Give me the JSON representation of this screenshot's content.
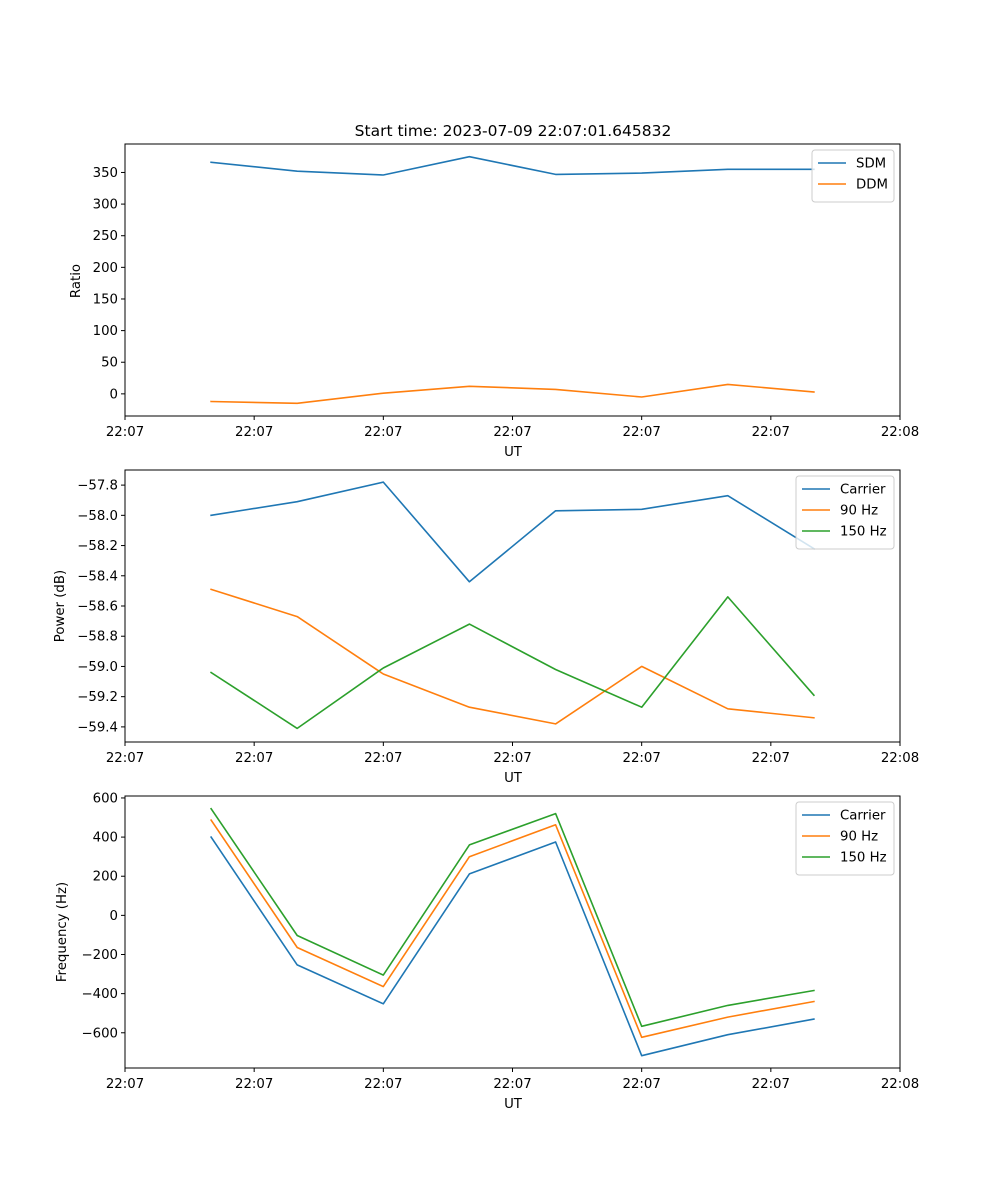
{
  "colors": {
    "c0": "#1f77b4",
    "c1": "#ff7f0e",
    "c2": "#2ca02c"
  },
  "chart_data": [
    {
      "type": "line",
      "title": "Start time: 2023-07-09 22:07:01.645832",
      "xlabel": "UT",
      "ylabel": "Ratio",
      "x": [
        1,
        2,
        3,
        4,
        5,
        6,
        7,
        8
      ],
      "xlim": [
        0,
        9
      ],
      "xticks": [
        0,
        1.5,
        3,
        4.5,
        6,
        7.5,
        9
      ],
      "xtick_labels": [
        "22:07",
        "22:07",
        "22:07",
        "22:07",
        "22:07",
        "22:07",
        "22:08"
      ],
      "ylim": [
        -35,
        395
      ],
      "yticks": [
        0,
        50,
        100,
        150,
        200,
        250,
        300,
        350
      ],
      "ytick_labels": [
        "0",
        "50",
        "100",
        "150",
        "200",
        "250",
        "300",
        "350"
      ],
      "legend_position": "top-right",
      "series": [
        {
          "name": "SDM",
          "color": "#1f77b4",
          "values": [
            366,
            352,
            346,
            375,
            347,
            349,
            355,
            355
          ]
        },
        {
          "name": "DDM",
          "color": "#ff7f0e",
          "values": [
            -12,
            -15,
            1,
            12,
            7,
            -5,
            15,
            3
          ]
        }
      ]
    },
    {
      "type": "line",
      "title": "",
      "xlabel": "UT",
      "ylabel": "Power (dB)",
      "x": [
        1,
        2,
        3,
        4,
        5,
        6,
        7,
        8
      ],
      "xlim": [
        0,
        9
      ],
      "xticks": [
        0,
        1.5,
        3,
        4.5,
        6,
        7.5,
        9
      ],
      "xtick_labels": [
        "22:07",
        "22:07",
        "22:07",
        "22:07",
        "22:07",
        "22:07",
        "22:08"
      ],
      "ylim": [
        -59.5,
        -57.7
      ],
      "yticks": [
        -59.4,
        -59.2,
        -59.0,
        -58.8,
        -58.6,
        -58.4,
        -58.2,
        -58.0,
        -57.8
      ],
      "ytick_labels": [
        "−59.4",
        "−59.2",
        "−59.0",
        "−58.8",
        "−58.6",
        "−58.4",
        "−58.2",
        "−58.0",
        "−57.8"
      ],
      "legend_position": "top-right",
      "series": [
        {
          "name": "Carrier",
          "color": "#1f77b4",
          "values": [
            -58.0,
            -57.91,
            -57.78,
            -58.44,
            -57.97,
            -57.96,
            -57.87,
            -58.22
          ]
        },
        {
          "name": "90 Hz",
          "color": "#ff7f0e",
          "values": [
            -58.49,
            -58.67,
            -59.05,
            -59.27,
            -59.38,
            -59.0,
            -59.28,
            -59.34
          ]
        },
        {
          "name": "150 Hz",
          "color": "#2ca02c",
          "values": [
            -59.04,
            -59.41,
            -59.01,
            -58.72,
            -59.02,
            -59.27,
            -58.54,
            -59.19
          ]
        }
      ]
    },
    {
      "type": "line",
      "title": "",
      "xlabel": "UT",
      "ylabel": "Frequency (Hz)",
      "x": [
        1,
        2,
        3,
        4,
        5,
        6,
        7,
        8
      ],
      "xlim": [
        0,
        9
      ],
      "xticks": [
        0,
        1.5,
        3,
        4.5,
        6,
        7.5,
        9
      ],
      "xtick_labels": [
        "22:07",
        "22:07",
        "22:07",
        "22:07",
        "22:07",
        "22:07",
        "22:08"
      ],
      "ylim": [
        -780,
        610
      ],
      "yticks": [
        -600,
        -400,
        -200,
        0,
        200,
        400,
        600
      ],
      "ytick_labels": [
        "−600",
        "−400",
        "−200",
        "0",
        "200",
        "400",
        "600"
      ],
      "legend_position": "top-right",
      "series": [
        {
          "name": "Carrier",
          "color": "#1f77b4",
          "values": [
            400,
            -253,
            -452,
            212,
            375,
            -717,
            -610,
            -530
          ]
        },
        {
          "name": "90 Hz",
          "color": "#ff7f0e",
          "values": [
            487,
            -164,
            -364,
            300,
            463,
            -623,
            -520,
            -440
          ]
        },
        {
          "name": "150 Hz",
          "color": "#2ca02c",
          "values": [
            545,
            -103,
            -305,
            360,
            520,
            -567,
            -460,
            -384
          ]
        }
      ]
    }
  ]
}
